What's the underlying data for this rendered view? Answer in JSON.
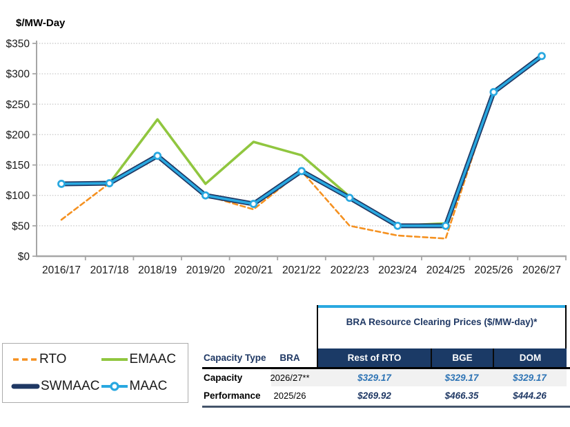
{
  "chart": {
    "axis_title": "$/MW-Day",
    "y_tick_labels": [
      "$0",
      "$50",
      "$100",
      "$150",
      "$200",
      "$250",
      "$300",
      "$350"
    ]
  },
  "chart_data": {
    "type": "line",
    "title": "",
    "ylabel": "$/MW-Day",
    "xlabel": "",
    "ylim": [
      0,
      350
    ],
    "ytick_step": 50,
    "grid": true,
    "legend_position": "bottom-left",
    "categories": [
      "2016/17",
      "2017/18",
      "2018/19",
      "2019/20",
      "2020/21",
      "2021/22",
      "2022/23",
      "2023/24",
      "2024/25",
      "2025/26",
      "2026/27"
    ],
    "series": [
      {
        "name": "RTO",
        "color": "#F59120",
        "dash": "7 4.5",
        "width": 2.6,
        "marker": false,
        "values": [
          60,
          120,
          165,
          100,
          77,
          140,
          50,
          34,
          29,
          269.92,
          329.17
        ]
      },
      {
        "name": "EMAAC",
        "color": "#90C63F",
        "dash": null,
        "width": 3.6,
        "marker": false,
        "values": [
          119,
          120,
          225,
          119,
          188,
          166,
          98,
          50,
          54,
          269.92,
          329.17
        ]
      },
      {
        "name": "SWMAAC",
        "color": "#1F3864",
        "dash": null,
        "width": 7,
        "marker": false,
        "values": [
          119,
          120,
          165,
          100,
          86,
          140,
          96,
          50,
          50,
          269.92,
          329.17
        ]
      },
      {
        "name": "MAAC",
        "color": "#29A8E0",
        "dash": null,
        "width": 3.6,
        "marker": true,
        "values": [
          119,
          120,
          165,
          100,
          86,
          140,
          96,
          50,
          50,
          269.92,
          329.17
        ]
      }
    ]
  },
  "table": {
    "title": "BRA Resource Clearing Prices ($/MW-day)*",
    "capacity_type_header": "Capacity Type",
    "bra_header": "BRA",
    "price_columns": [
      "Rest of RTO",
      "BGE",
      "DOM"
    ],
    "rows": [
      {
        "label": "Capacity",
        "bra": "2026/27**",
        "prices": [
          "$329.17",
          "$329.17",
          "$329.17"
        ]
      },
      {
        "label": "Performance",
        "bra": "2025/26",
        "prices": [
          "$269.92",
          "$466.35",
          "$444.26"
        ]
      }
    ],
    "colors": {
      "header_bg": "#1B3A66",
      "header_text": "#FFFFFF",
      "title_text": "#1F3864",
      "accent_top": "#29A8E0",
      "row1_value": "#2E74B5",
      "row2_value": "#1F3864",
      "left_header_text": "#1F3864"
    }
  }
}
